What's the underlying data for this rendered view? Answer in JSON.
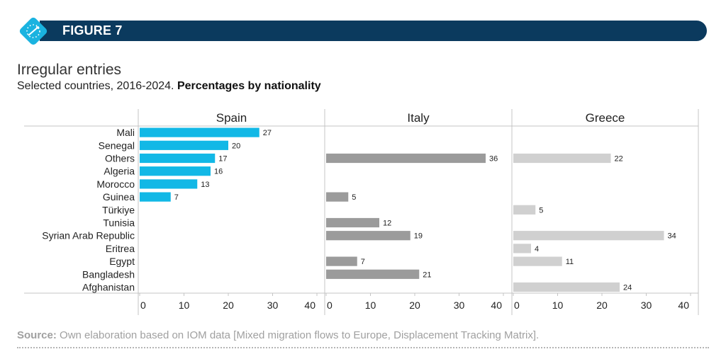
{
  "header": {
    "figure_label": "FIGURE 7",
    "title": "Irregular entries",
    "subtitle_regular": "Selected countries, 2016-2024. ",
    "subtitle_bold": "Percentages by nationality"
  },
  "footer": {
    "source_label": "Source:",
    "source_text": " Own elaboration based on IOM data [Mixed migration flows to Europe, Displacement Tracking Matrix]."
  },
  "colors": {
    "banner": "#0b3a5e",
    "logo": "#1ab3e0",
    "Spain": "#12b8e6",
    "Italy": "#9b9b9b",
    "Greece": "#d0d0d0"
  },
  "chart_data": {
    "type": "bar",
    "orientation": "horizontal",
    "categories": [
      "Mali",
      "Senegal",
      "Others",
      "Algeria",
      "Morocco",
      "Guinea",
      "Türkiye",
      "Tunisia",
      "Syrian Arab Republic",
      "Eritrea",
      "Egypt",
      "Bangladesh",
      "Afghanistan"
    ],
    "series": [
      {
        "name": "Spain",
        "values": [
          27,
          20,
          17,
          16,
          13,
          7,
          null,
          null,
          null,
          null,
          null,
          null,
          null
        ]
      },
      {
        "name": "Italy",
        "values": [
          null,
          null,
          36,
          null,
          null,
          5,
          null,
          12,
          19,
          null,
          7,
          21,
          null
        ]
      },
      {
        "name": "Greece",
        "values": [
          null,
          null,
          22,
          null,
          null,
          null,
          5,
          null,
          34,
          4,
          11,
          null,
          24
        ]
      }
    ],
    "xlim": [
      0,
      40
    ],
    "xticks": [
      0,
      10,
      20,
      30,
      40
    ],
    "grid": false,
    "legend": "panel titles"
  }
}
